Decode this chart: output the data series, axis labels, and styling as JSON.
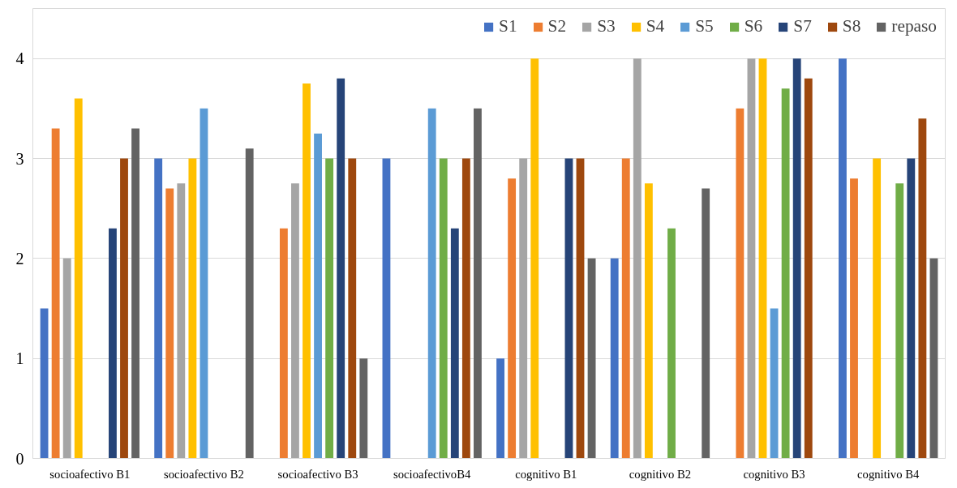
{
  "chart_data": {
    "type": "bar",
    "categories": [
      "socioafectivo B1",
      "socioafectivo B2",
      "socioafectivo B3",
      "socioafectivoB4",
      "cognitivo B1",
      "cognitivo B2",
      "cognitivo B3",
      "cognitivo B4"
    ],
    "ylim": [
      0,
      4.5
    ],
    "yticks": [
      0,
      1,
      2,
      3,
      4
    ],
    "grid": "y",
    "legend": "top right",
    "series": [
      {
        "name": "S1",
        "color": "#4472c4",
        "values": [
          1.5,
          3.0,
          null,
          3.0,
          1.0,
          2.0,
          null,
          4.0
        ]
      },
      {
        "name": "S2",
        "color": "#ed7d31",
        "values": [
          3.3,
          2.7,
          2.3,
          null,
          2.8,
          3.0,
          3.5,
          2.8
        ]
      },
      {
        "name": "S3",
        "color": "#a5a5a5",
        "values": [
          2.0,
          2.75,
          2.75,
          null,
          3.0,
          4.0,
          4.0,
          null
        ]
      },
      {
        "name": "S4",
        "color": "#ffc000",
        "values": [
          3.6,
          3.0,
          3.75,
          null,
          4.0,
          2.75,
          4.0,
          3.0
        ]
      },
      {
        "name": "S5",
        "color": "#5b9bd5",
        "values": [
          null,
          3.5,
          3.25,
          3.5,
          null,
          null,
          1.5,
          null
        ]
      },
      {
        "name": "S6",
        "color": "#70ad47",
        "values": [
          null,
          null,
          3.0,
          3.0,
          null,
          2.3,
          3.7,
          2.75
        ]
      },
      {
        "name": "S7",
        "color": "#264478",
        "values": [
          2.3,
          null,
          3.8,
          2.3,
          3.0,
          null,
          4.0,
          3.0
        ]
      },
      {
        "name": "S8",
        "color": "#9e480e",
        "values": [
          3.0,
          null,
          3.0,
          3.0,
          3.0,
          null,
          3.8,
          3.4
        ]
      },
      {
        "name": "repaso",
        "color": "#636363",
        "values": [
          3.3,
          3.1,
          1.0,
          3.5,
          2.0,
          2.7,
          null,
          2.0
        ]
      }
    ]
  }
}
